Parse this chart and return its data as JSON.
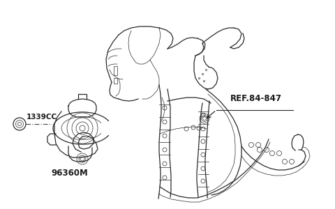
{
  "background_color": "#ffffff",
  "text_color": "#1a1a1a",
  "line_color": "#2a2a2a",
  "dash_color": "#444444",
  "label_1339CC": "1339CC",
  "label_96360M": "96360M",
  "label_REF": "REF.84-847",
  "fig_width": 4.8,
  "fig_height": 3.0,
  "dpi": 100,
  "lw_main": 0.9,
  "lw_thin": 0.5,
  "lw_thick": 1.3
}
